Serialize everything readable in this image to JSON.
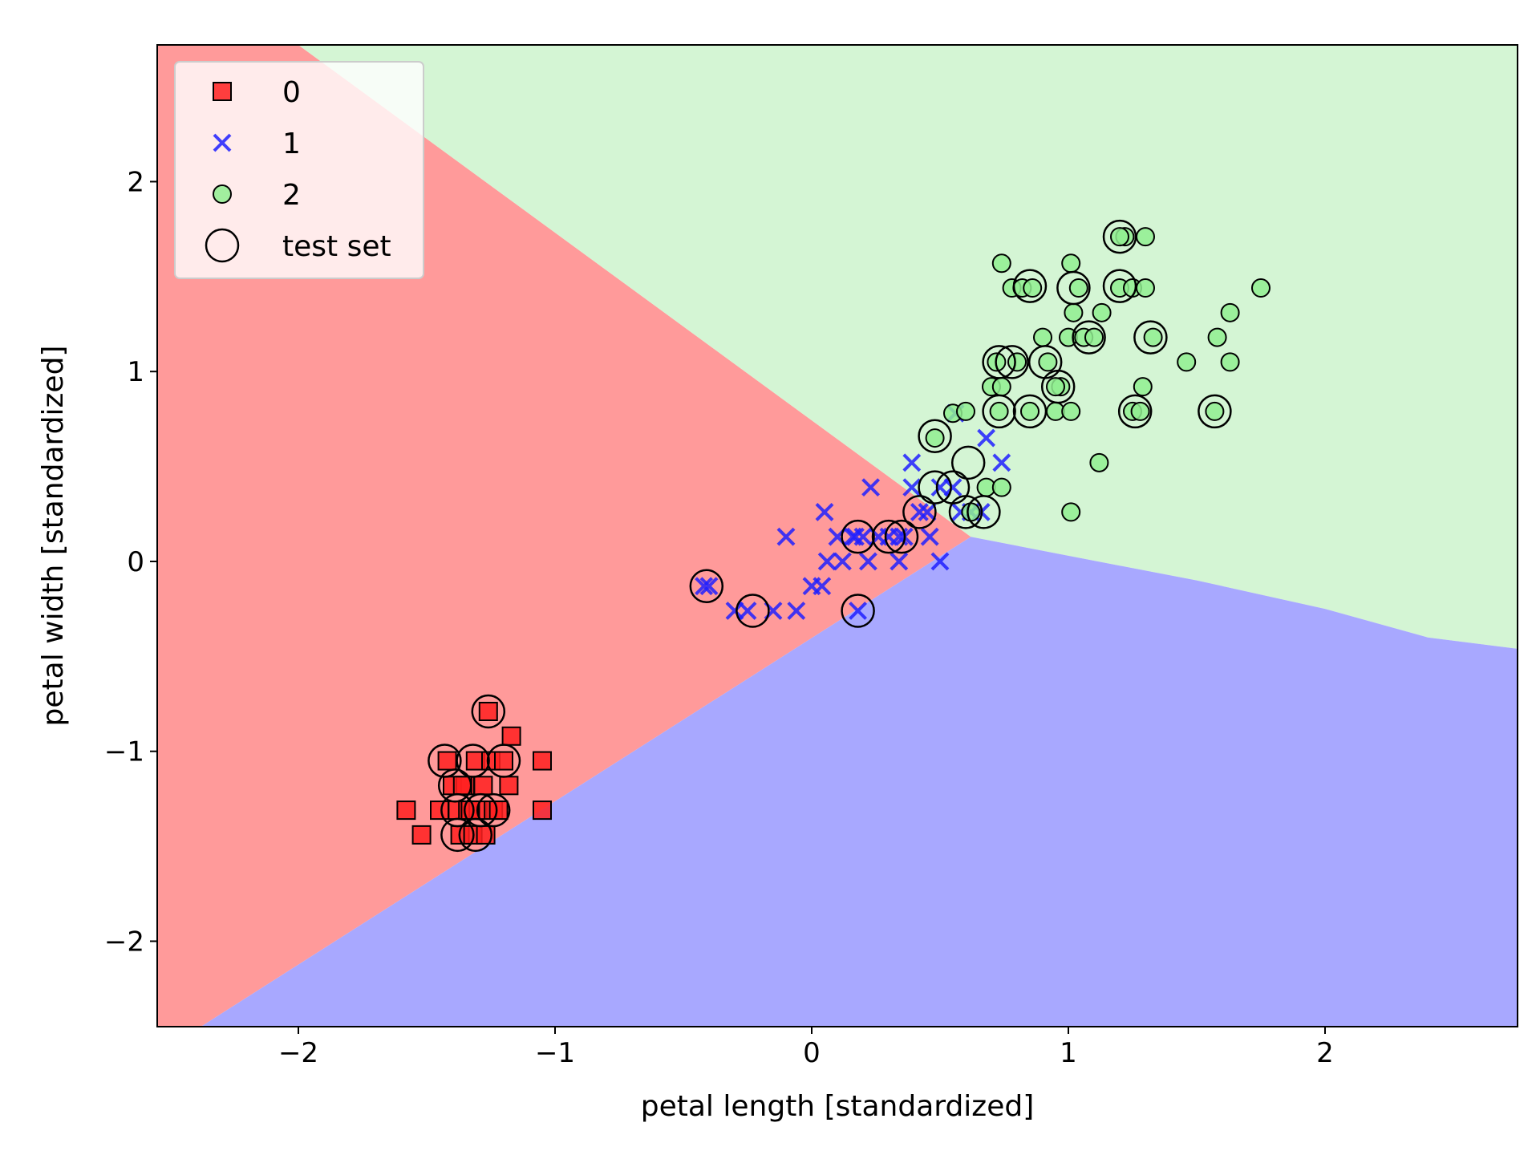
{
  "chart_data": {
    "type": "scatter",
    "title": "",
    "xlabel": "petal length [standardized]",
    "ylabel": "petal width [standardized]",
    "xlim": [
      -2.55,
      2.75
    ],
    "ylim": [
      -2.45,
      2.72
    ],
    "xticks": [
      -2,
      -1,
      0,
      1,
      2
    ],
    "yticks": [
      -2,
      -1,
      0,
      1,
      2
    ],
    "xtick_labels": [
      "−2",
      "−1",
      "0",
      "1",
      "2"
    ],
    "ytick_labels": [
      "−2",
      "−1",
      "0",
      "1",
      "2"
    ],
    "grid": false,
    "legend_position": "top-left",
    "decision_regions": [
      {
        "class": "0",
        "color": "#ff9a9a",
        "polygon": [
          [
            -2.55,
            2.72
          ],
          [
            -2.0,
            2.72
          ],
          [
            0.62,
            0.13
          ],
          [
            -2.38,
            -2.45
          ],
          [
            -2.55,
            -2.45
          ]
        ]
      },
      {
        "class": "2",
        "color": "#d4f5d4",
        "polygon": [
          [
            -2.0,
            2.72
          ],
          [
            2.75,
            2.72
          ],
          [
            2.75,
            -0.46
          ],
          [
            2.4,
            -0.4
          ],
          [
            2.0,
            -0.25
          ],
          [
            1.5,
            -0.1
          ],
          [
            1.0,
            0.03
          ],
          [
            0.62,
            0.13
          ]
        ]
      },
      {
        "class": "1",
        "color": "#a8a8ff",
        "polygon": [
          [
            0.62,
            0.13
          ],
          [
            1.0,
            0.03
          ],
          [
            1.5,
            -0.1
          ],
          [
            2.0,
            -0.25
          ],
          [
            2.4,
            -0.4
          ],
          [
            2.75,
            -0.46
          ],
          [
            2.75,
            -2.45
          ],
          [
            -2.38,
            -2.45
          ]
        ]
      }
    ],
    "series": [
      {
        "name": "0",
        "marker": "square",
        "color": "#ff2020",
        "points": [
          [
            -1.58,
            -1.31
          ],
          [
            -1.52,
            -1.44
          ],
          [
            -1.45,
            -1.31
          ],
          [
            -1.42,
            -1.05
          ],
          [
            -1.4,
            -1.18
          ],
          [
            -1.38,
            -1.31
          ],
          [
            -1.37,
            -1.44
          ],
          [
            -1.35,
            -1.18
          ],
          [
            -1.34,
            -1.31
          ],
          [
            -1.32,
            -1.44
          ],
          [
            -1.31,
            -1.05
          ],
          [
            -1.3,
            -1.31
          ],
          [
            -1.28,
            -1.18
          ],
          [
            -1.27,
            -1.44
          ],
          [
            -1.25,
            -1.05
          ],
          [
            -1.24,
            -1.31
          ],
          [
            -1.22,
            -1.31
          ],
          [
            -1.2,
            -1.05
          ],
          [
            -1.18,
            -1.18
          ],
          [
            -1.17,
            -0.92
          ],
          [
            -1.05,
            -1.31
          ],
          [
            -1.05,
            -1.05
          ],
          [
            -1.26,
            -0.79
          ],
          [
            -1.33,
            -1.31
          ],
          [
            -1.36,
            -1.18
          ]
        ]
      },
      {
        "name": "1",
        "marker": "x",
        "color": "#2020ff",
        "points": [
          [
            -0.42,
            -0.13
          ],
          [
            -0.3,
            -0.26
          ],
          [
            -0.25,
            -0.26
          ],
          [
            -0.15,
            -0.26
          ],
          [
            -0.1,
            0.13
          ],
          [
            -0.06,
            -0.26
          ],
          [
            0.0,
            -0.13
          ],
          [
            0.04,
            -0.13
          ],
          [
            0.05,
            0.26
          ],
          [
            0.06,
            0.0
          ],
          [
            0.1,
            0.13
          ],
          [
            0.12,
            0.0
          ],
          [
            0.16,
            0.13
          ],
          [
            0.18,
            -0.26
          ],
          [
            0.2,
            0.13
          ],
          [
            0.22,
            0.0
          ],
          [
            0.23,
            0.39
          ],
          [
            0.26,
            0.13
          ],
          [
            0.3,
            0.13
          ],
          [
            0.34,
            0.0
          ],
          [
            0.36,
            0.13
          ],
          [
            0.39,
            0.39
          ],
          [
            0.39,
            0.52
          ],
          [
            0.42,
            0.26
          ],
          [
            0.45,
            0.26
          ],
          [
            0.46,
            0.13
          ],
          [
            0.5,
            0.39
          ],
          [
            0.5,
            0.0
          ],
          [
            0.55,
            0.39
          ],
          [
            0.58,
            0.26
          ],
          [
            0.62,
            0.26
          ],
          [
            0.66,
            0.26
          ],
          [
            0.68,
            0.65
          ],
          [
            0.74,
            0.52
          ],
          [
            0.56,
            0.78
          ],
          [
            0.17,
            0.13
          ],
          [
            -0.4,
            -0.13
          ],
          [
            0.34,
            0.13
          ]
        ]
      },
      {
        "name": "2",
        "marker": "circle",
        "color": "#90ee90",
        "points": [
          [
            0.48,
            0.65
          ],
          [
            0.55,
            0.78
          ],
          [
            0.6,
            0.79
          ],
          [
            0.62,
            0.26
          ],
          [
            0.68,
            0.39
          ],
          [
            0.7,
            0.92
          ],
          [
            0.72,
            1.05
          ],
          [
            0.73,
            0.79
          ],
          [
            0.74,
            0.39
          ],
          [
            0.74,
            0.92
          ],
          [
            0.74,
            1.57
          ],
          [
            0.78,
            1.44
          ],
          [
            0.8,
            1.05
          ],
          [
            0.82,
            1.44
          ],
          [
            0.85,
            0.79
          ],
          [
            0.86,
            1.44
          ],
          [
            0.9,
            1.18
          ],
          [
            0.92,
            1.05
          ],
          [
            0.95,
            0.79
          ],
          [
            0.97,
            0.92
          ],
          [
            1.0,
            1.18
          ],
          [
            1.01,
            1.57
          ],
          [
            1.01,
            0.79
          ],
          [
            1.01,
            0.26
          ],
          [
            1.02,
            1.31
          ],
          [
            1.04,
            1.44
          ],
          [
            1.06,
            1.18
          ],
          [
            1.1,
            1.18
          ],
          [
            1.12,
            0.52
          ],
          [
            1.13,
            1.31
          ],
          [
            1.2,
            1.44
          ],
          [
            1.22,
            1.71
          ],
          [
            1.25,
            1.44
          ],
          [
            1.25,
            0.79
          ],
          [
            1.28,
            0.79
          ],
          [
            1.29,
            0.92
          ],
          [
            1.3,
            1.71
          ],
          [
            1.3,
            1.44
          ],
          [
            1.33,
            1.18
          ],
          [
            1.46,
            1.05
          ],
          [
            1.57,
            0.79
          ],
          [
            1.58,
            1.18
          ],
          [
            1.63,
            1.31
          ],
          [
            1.63,
            1.05
          ],
          [
            1.75,
            1.44
          ],
          [
            1.2,
            1.71
          ],
          [
            0.95,
            0.92
          ]
        ]
      },
      {
        "name": "test set",
        "marker": "ring",
        "color": "#000000",
        "points": [
          [
            -1.43,
            -1.05
          ],
          [
            -1.39,
            -1.18
          ],
          [
            -1.38,
            -1.31
          ],
          [
            -1.38,
            -1.44
          ],
          [
            -1.32,
            -1.05
          ],
          [
            -1.31,
            -1.44
          ],
          [
            -1.29,
            -1.31
          ],
          [
            -1.26,
            -0.79
          ],
          [
            -1.24,
            -1.31
          ],
          [
            -1.2,
            -1.05
          ],
          [
            -0.41,
            -0.13
          ],
          [
            -0.23,
            -0.26
          ],
          [
            0.18,
            -0.26
          ],
          [
            0.18,
            0.13
          ],
          [
            0.3,
            0.13
          ],
          [
            0.35,
            0.13
          ],
          [
            0.42,
            0.26
          ],
          [
            0.48,
            0.39
          ],
          [
            0.48,
            0.66
          ],
          [
            0.55,
            0.39
          ],
          [
            0.6,
            0.26
          ],
          [
            0.61,
            0.52
          ],
          [
            0.67,
            0.26
          ],
          [
            0.73,
            0.79
          ],
          [
            0.73,
            1.05
          ],
          [
            0.78,
            1.05
          ],
          [
            0.85,
            1.45
          ],
          [
            0.85,
            0.79
          ],
          [
            0.91,
            1.05
          ],
          [
            0.96,
            0.92
          ],
          [
            1.02,
            1.44
          ],
          [
            1.08,
            1.18
          ],
          [
            1.2,
            1.71
          ],
          [
            1.2,
            1.45
          ],
          [
            1.26,
            0.79
          ],
          [
            1.32,
            1.18
          ],
          [
            1.57,
            0.79
          ]
        ]
      }
    ],
    "legend": [
      {
        "label": "0",
        "marker": "square"
      },
      {
        "label": "1",
        "marker": "x"
      },
      {
        "label": "2",
        "marker": "circle"
      },
      {
        "label": "test set",
        "marker": "ring"
      }
    ]
  }
}
